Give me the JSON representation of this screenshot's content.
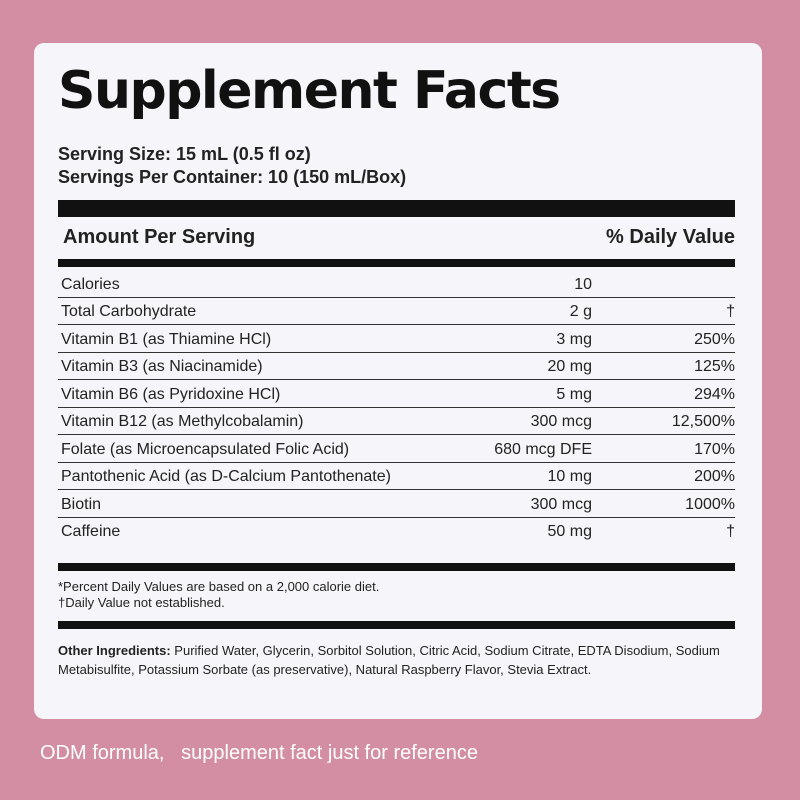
{
  "title": "Supplement Facts",
  "serving_size": "Serving Size: 15 mL (0.5 fl oz)",
  "servings_per_container": "Servings Per Container: 10 (150 mL/Box)",
  "header": {
    "amount": "Amount Per Serving",
    "daily_value": "% Daily Value"
  },
  "nutrients": [
    {
      "name": "Calories",
      "amount": "10",
      "dv": ""
    },
    {
      "name": "Total Carbohydrate",
      "amount": "2 g",
      "dv": "†"
    },
    {
      "name": "Vitamin B1 (as Thiamine HCl)",
      "amount": "3 mg",
      "dv": "250%"
    },
    {
      "name": "Vitamin B3 (as Niacinamide)",
      "amount": "20 mg",
      "dv": "125%"
    },
    {
      "name": "Vitamin B6 (as Pyridoxine HCl)",
      "amount": "5 mg",
      "dv": "294%"
    },
    {
      "name": "Vitamin B12 (as Methylcobalamin)",
      "amount": "300 mcg",
      "dv": "12,500%"
    },
    {
      "name": "Folate (as Microencapsulated Folic Acid)",
      "amount": "680 mcg DFE",
      "dv": "170%"
    },
    {
      "name": "Pantothenic Acid (as D-Calcium Pantothenate)",
      "amount": "10 mg",
      "dv": "200%"
    },
    {
      "name": "Biotin",
      "amount": "300 mcg",
      "dv": "1000%"
    },
    {
      "name": "Caffeine",
      "amount": "50 mg",
      "dv": "†"
    }
  ],
  "footnotes": {
    "percent": "*Percent Daily Values are based on a 2,000 calorie diet.",
    "dagger": "†Daily Value not established."
  },
  "other_ingredients": {
    "label": "Other Ingredients:",
    "text": " Purified Water, Glycerin, Sorbitol Solution, Citric Acid, Sodium Citrate, EDTA Disodium, Sodium Metabisulfite, Potassium Sorbate (as preservative), Natural Raspberry Flavor, Stevia Extract."
  },
  "caption": "ODM formula,   supplement fact just for reference",
  "colors": {
    "background": "#d38ea4",
    "card": "#f6f6fa",
    "ink": "#111111"
  }
}
